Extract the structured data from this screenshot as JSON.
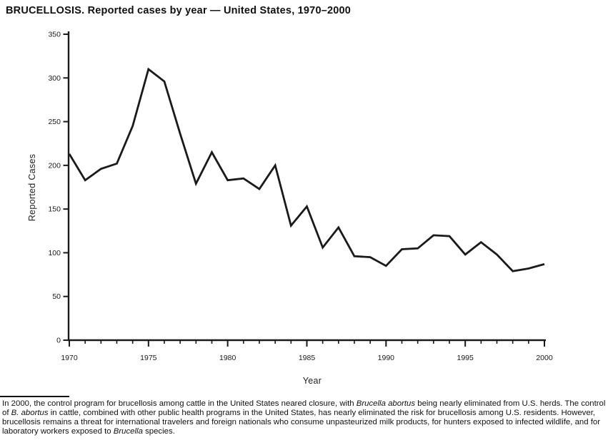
{
  "title": "BRUCELLOSIS. Reported cases by year — United States, 1970–2000",
  "chart_data": {
    "type": "line",
    "title": "BRUCELLOSIS. Reported cases by year — United States, 1970–2000",
    "xlabel": "Year",
    "ylabel": "Reported Cases",
    "x": [
      1970,
      1971,
      1972,
      1973,
      1974,
      1975,
      1976,
      1977,
      1978,
      1979,
      1980,
      1981,
      1982,
      1983,
      1984,
      1985,
      1986,
      1987,
      1988,
      1989,
      1990,
      1991,
      1992,
      1993,
      1994,
      1995,
      1996,
      1997,
      1998,
      1999,
      2000
    ],
    "values": [
      213,
      183,
      196,
      202,
      245,
      310,
      296,
      236,
      179,
      215,
      183,
      185,
      173,
      200,
      131,
      153,
      106,
      129,
      96,
      95,
      85,
      104,
      105,
      120,
      119,
      98,
      112,
      98,
      79,
      82,
      87
    ],
    "ylim": [
      0,
      350
    ],
    "yticks": [
      0,
      50,
      100,
      150,
      200,
      250,
      300,
      350
    ],
    "xticks_major": [
      1970,
      1975,
      1980,
      1985,
      1990,
      1995,
      2000
    ],
    "grid": false,
    "legend": "none",
    "line_color": "#1a1a1a",
    "axis_color": "#1a1a1a",
    "text_color": "#1a1a1a"
  },
  "footnote": {
    "segments": [
      {
        "text": "In 2000, the control program for brucellosis among cattle in the United States neared closure, with ",
        "italic": false
      },
      {
        "text": "Brucella abortus",
        "italic": true
      },
      {
        "text": " being nearly eliminated from U.S. herds. The control of ",
        "italic": false
      },
      {
        "text": "B. abortus",
        "italic": true
      },
      {
        "text": " in cattle, combined with other public health programs in the United States, has nearly eliminated the risk for brucellosis among U.S. residents. However, brucellosis remains a threat for international travelers and foreign nationals who consume unpasteurized milk products, for hunters exposed to infected wildlife, and for laboratory workers exposed to ",
        "italic": false
      },
      {
        "text": "Brucella",
        "italic": true
      },
      {
        "text": " species.",
        "italic": false
      }
    ]
  }
}
